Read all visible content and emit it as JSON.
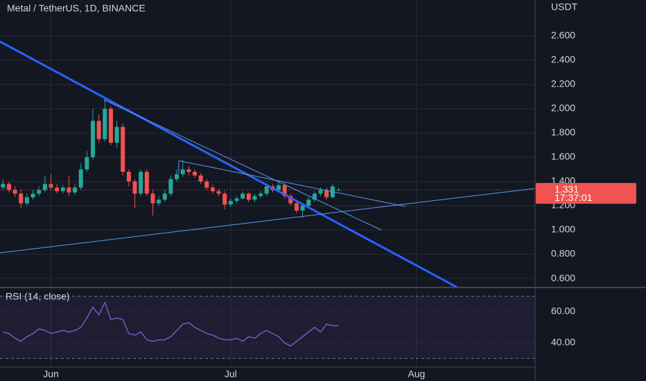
{
  "chart_data": [
    {
      "type": "candlestick",
      "title": "Metal / TetherUS, 1D, BINANCE",
      "unit": "USDT",
      "up_color": "#26a69a",
      "down_color": "#ef5350",
      "open": [
        1.35,
        1.38,
        1.33,
        1.3,
        1.22,
        1.27,
        1.3,
        1.33,
        1.38,
        1.35,
        1.32,
        1.35,
        1.31,
        1.35,
        1.5,
        1.6,
        1.9,
        1.75,
        2.0,
        1.72,
        1.85,
        1.48,
        1.4,
        1.3,
        1.48,
        1.3,
        1.22,
        1.25,
        1.3,
        1.42,
        1.46,
        1.5,
        1.48,
        1.45,
        1.4,
        1.35,
        1.32,
        1.3,
        1.21,
        1.24,
        1.26,
        1.3,
        1.25,
        1.28,
        1.3,
        1.36,
        1.33,
        1.37,
        1.28,
        1.22,
        1.16,
        1.2,
        1.25,
        1.3,
        1.33,
        1.27,
        1.33
      ],
      "high": [
        1.42,
        1.4,
        1.36,
        1.33,
        1.3,
        1.33,
        1.36,
        1.45,
        1.46,
        1.38,
        1.37,
        1.45,
        1.38,
        1.55,
        1.65,
        2.0,
        1.95,
        2.08,
        2.02,
        1.9,
        1.88,
        1.5,
        1.42,
        1.5,
        1.5,
        1.33,
        1.28,
        1.33,
        1.45,
        1.5,
        1.58,
        1.53,
        1.5,
        1.47,
        1.42,
        1.37,
        1.34,
        1.32,
        1.26,
        1.28,
        1.32,
        1.31,
        1.3,
        1.32,
        1.38,
        1.38,
        1.41,
        1.39,
        1.3,
        1.24,
        1.22,
        1.27,
        1.32,
        1.35,
        1.35,
        1.38,
        1.35
      ],
      "low": [
        1.33,
        1.31,
        1.27,
        1.18,
        1.2,
        1.25,
        1.28,
        1.31,
        1.33,
        1.3,
        1.3,
        1.28,
        1.29,
        1.33,
        1.48,
        1.58,
        1.72,
        1.73,
        1.7,
        1.68,
        1.45,
        1.36,
        1.18,
        1.28,
        1.28,
        1.12,
        1.2,
        1.23,
        1.28,
        1.4,
        1.44,
        1.45,
        1.43,
        1.38,
        1.33,
        1.3,
        1.28,
        1.17,
        1.19,
        1.22,
        1.25,
        1.23,
        1.23,
        1.26,
        1.28,
        1.31,
        1.32,
        1.26,
        1.2,
        1.14,
        1.1,
        1.18,
        1.23,
        1.28,
        1.25,
        1.26,
        1.32
      ],
      "close": [
        1.38,
        1.33,
        1.3,
        1.22,
        1.27,
        1.3,
        1.33,
        1.38,
        1.35,
        1.32,
        1.35,
        1.31,
        1.35,
        1.5,
        1.6,
        1.9,
        1.75,
        2.0,
        1.72,
        1.85,
        1.48,
        1.4,
        1.3,
        1.48,
        1.3,
        1.22,
        1.25,
        1.3,
        1.42,
        1.46,
        1.5,
        1.48,
        1.45,
        1.4,
        1.35,
        1.32,
        1.3,
        1.21,
        1.24,
        1.26,
        1.3,
        1.25,
        1.28,
        1.3,
        1.36,
        1.33,
        1.37,
        1.28,
        1.22,
        1.16,
        1.2,
        1.25,
        1.3,
        1.33,
        1.27,
        1.36,
        1.331
      ],
      "last_price": 1.331,
      "countdown": "17:37:01",
      "xlim": [
        -0.5,
        88.8
      ],
      "xticks": [
        {
          "value": 8,
          "label": "Jun"
        },
        {
          "value": 38,
          "label": "Jul"
        },
        {
          "value": 69,
          "label": "Aug"
        }
      ],
      "ylim": [
        0.526,
        2.897
      ],
      "yticks": [
        {
          "value": 0.6,
          "label": "0.600"
        },
        {
          "value": 0.8,
          "label": "0.800"
        },
        {
          "value": 1.0,
          "label": "1.000"
        },
        {
          "value": 1.2,
          "label": "1.200"
        },
        {
          "value": 1.4,
          "label": "1.400"
        },
        {
          "value": 1.6,
          "label": "1.600"
        },
        {
          "value": 1.8,
          "label": "1.800"
        },
        {
          "value": 2.0,
          "label": "2.000"
        },
        {
          "value": 2.2,
          "label": "2.200"
        },
        {
          "value": 2.4,
          "label": "2.400"
        },
        {
          "value": 2.6,
          "label": "2.600"
        }
      ],
      "grid": true
    },
    {
      "type": "line",
      "series": [
        {
          "name": "RSI (14, close)",
          "color": "#7e57c2",
          "values": [
            47,
            46,
            43,
            41,
            44,
            46,
            49,
            48,
            46,
            47,
            48,
            47,
            48,
            50,
            56,
            63,
            58,
            66,
            55,
            56,
            55,
            46,
            45,
            47,
            42,
            41,
            42,
            42,
            44,
            48,
            52,
            53,
            50,
            48,
            46,
            45,
            43,
            42,
            42,
            43,
            41,
            44,
            43,
            46,
            48,
            46,
            44,
            40,
            38,
            41,
            44,
            47,
            50,
            47,
            52,
            51,
            51
          ]
        }
      ],
      "bands": [
        70,
        30
      ],
      "ylim": [
        24.4,
        75.6
      ],
      "yticks": [
        {
          "value": 40,
          "label": "40.00"
        },
        {
          "value": 60,
          "label": "60.00"
        }
      ],
      "grid": true
    }
  ]
}
